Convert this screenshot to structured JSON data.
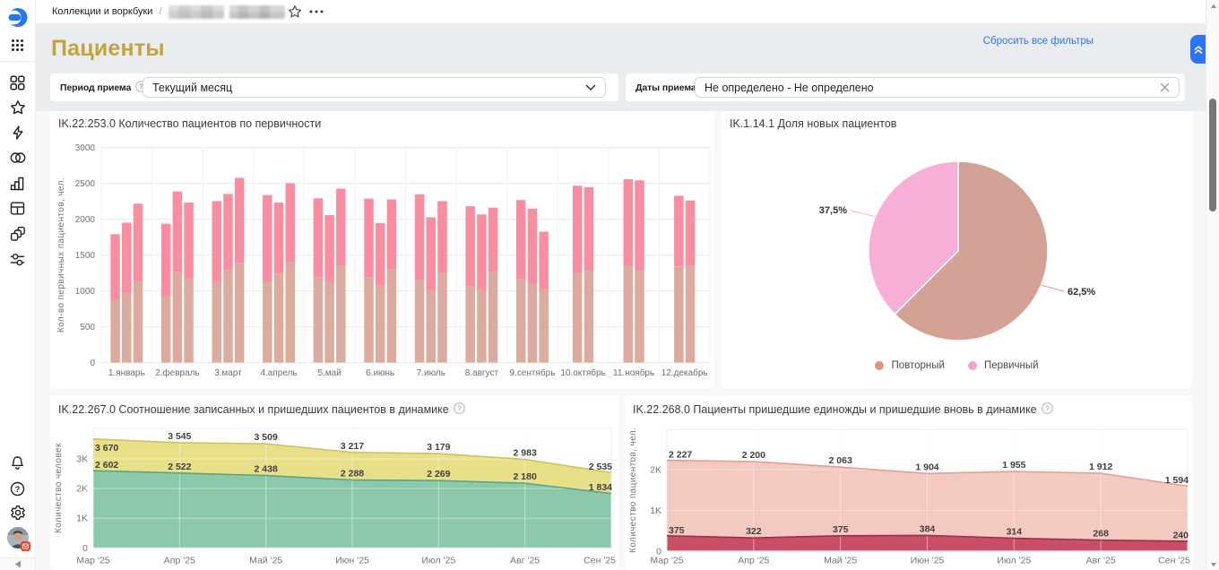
{
  "topbar": {
    "breadcrumb": {
      "root": "Коллекции и воркбуки",
      "separator": "/",
      "masked_segment_count": 2
    },
    "icons": [
      "star-icon",
      "ellipsis-icon"
    ]
  },
  "sidebar": {
    "logo_icon": "datalens-logo",
    "apps_icon": "apps-grid-icon",
    "nav_icons": [
      "collections-icon",
      "favorites-star-icon",
      "quick-actions-lightning-icon",
      "connections-icon",
      "charts-icon",
      "dashboards-table-icon",
      "datasets-icon",
      "services-sliders-icon"
    ],
    "bottom_icons": [
      "bell-icon",
      "help-question-icon",
      "settings-gear-icon",
      "user-avatar"
    ],
    "collapse_icon": "collapse-arrow-icon"
  },
  "header": {
    "title": "Пациенты",
    "reset_filters_label": "Сбросить все фильтры"
  },
  "filters": {
    "period": {
      "label": "Период приема",
      "has_help": true,
      "control": "select",
      "value": "Текущий месяц"
    },
    "dates": {
      "label": "Даты приема",
      "control": "input",
      "value": "Не определено - Не определено",
      "clearable": true
    }
  },
  "colors": {
    "accent_blue": "#2e74fb",
    "link_blue": "#3072f7",
    "title_gold": "#c4a33e",
    "band_gray": "#e9edf0",
    "bar_bottom_tan": "#dcab9e",
    "bar_top_pink": "#fb8da1",
    "pie_repeat_tan": "#d4a295",
    "pie_new_pink": "#f8aed7",
    "area_yellow": "#e7e089",
    "area_green": "#8cc8ab",
    "area_salmon": "#f3c9c0",
    "area_crimson": "#c84f66"
  },
  "chart_data": [
    {
      "id": "bars",
      "type": "bar",
      "stacked": true,
      "title": "IK.22.253.0 Количество пациентов по первичности",
      "ylabel": "Кол-во первичных пациентов, чел.",
      "ylim": [
        0,
        3000
      ],
      "yticks": [
        0,
        500,
        1000,
        1500,
        2000,
        2500,
        3000
      ],
      "grid": true,
      "categories": [
        "1.январь",
        "2.февраль",
        "3.март",
        "4.апрель",
        "5.май",
        "6.июнь",
        "7.июль",
        "8.август",
        "9.сентябрь",
        "10.октябрь",
        "11.ноябрь",
        "12.декабрь"
      ],
      "segment_colors": [
        "#dcab9e",
        "#fb8da1"
      ],
      "groups": [
        {
          "category": "1.январь",
          "bars": [
            {
              "bottom": 870,
              "total": 1790
            },
            {
              "bottom": 970,
              "total": 1950
            },
            {
              "bottom": 1130,
              "total": 2215
            }
          ]
        },
        {
          "category": "2.февраль",
          "bars": [
            {
              "bottom": 920,
              "total": 1935
            },
            {
              "bottom": 1260,
              "total": 2385
            },
            {
              "bottom": 1170,
              "total": 2230
            }
          ]
        },
        {
          "category": "3.март",
          "bars": [
            {
              "bottom": 1120,
              "total": 2250
            },
            {
              "bottom": 1290,
              "total": 2350
            },
            {
              "bottom": 1385,
              "total": 2575
            }
          ]
        },
        {
          "category": "4.апрель",
          "bars": [
            {
              "bottom": 1125,
              "total": 2335
            },
            {
              "bottom": 1240,
              "total": 2230
            },
            {
              "bottom": 1405,
              "total": 2500
            }
          ]
        },
        {
          "category": "5.май",
          "bars": [
            {
              "bottom": 1190,
              "total": 2290
            },
            {
              "bottom": 1125,
              "total": 2055
            },
            {
              "bottom": 1355,
              "total": 2425
            }
          ]
        },
        {
          "category": "6.июнь",
          "bars": [
            {
              "bottom": 1185,
              "total": 2285
            },
            {
              "bottom": 1075,
              "total": 1945
            },
            {
              "bottom": 1305,
              "total": 2275
            }
          ]
        },
        {
          "category": "7.июль",
          "bars": [
            {
              "bottom": 1155,
              "total": 2345
            },
            {
              "bottom": 1005,
              "total": 2025
            },
            {
              "bottom": 1245,
              "total": 2250
            }
          ]
        },
        {
          "category": "8.август",
          "bars": [
            {
              "bottom": 1065,
              "total": 2180
            },
            {
              "bottom": 1025,
              "total": 2065
            },
            {
              "bottom": 1265,
              "total": 2160
            }
          ]
        },
        {
          "category": "9.сентябрь",
          "bars": [
            {
              "bottom": 1165,
              "total": 2265
            },
            {
              "bottom": 1095,
              "total": 2145
            },
            {
              "bottom": 1020,
              "total": 1825
            }
          ]
        },
        {
          "category": "10.октябрь",
          "bars": [
            {
              "bottom": 1250,
              "total": 2465
            },
            {
              "bottom": 1280,
              "total": 2445
            }
          ]
        },
        {
          "category": "11.ноябрь",
          "bars": [
            {
              "bottom": 1350,
              "total": 2555
            },
            {
              "bottom": 1280,
              "total": 2540
            }
          ]
        },
        {
          "category": "12.декабрь",
          "bars": [
            {
              "bottom": 1340,
              "total": 2325
            },
            {
              "bottom": 1345,
              "total": 2260
            }
          ]
        }
      ]
    },
    {
      "id": "pie",
      "type": "pie",
      "title": "IK.1.14.1 Доля новых пациентов",
      "slices": [
        {
          "label": "Повторный",
          "value": 62.5,
          "display": "62,5%",
          "color": "#d4a295"
        },
        {
          "label": "Первичный",
          "value": 37.5,
          "display": "37,5%",
          "color": "#f8aed7"
        }
      ],
      "legend": [
        {
          "label": "Повторный",
          "color": "#dd9482"
        },
        {
          "label": "Первичный",
          "color": "#f8a3cf"
        }
      ],
      "legend_position": "bottom"
    },
    {
      "id": "area1",
      "type": "area",
      "title": "IK.22.267.0 Соотношение записанных и пришедших пациентов в динамике",
      "has_help": true,
      "ylabel": "Количество человек",
      "x": [
        "Мар '25",
        "Апр '25",
        "Май '25",
        "Июн '25",
        "Июл '25",
        "Авг '25",
        "Сен '25"
      ],
      "yticks": [
        {
          "v": 0,
          "label": "0"
        },
        {
          "v": 1000,
          "label": "1K"
        },
        {
          "v": 2000,
          "label": "2K"
        },
        {
          "v": 3000,
          "label": "3K"
        }
      ],
      "grid": true,
      "series": [
        {
          "fill": "#e7e089",
          "line": "#cfc35e",
          "values": [
            3670,
            3545,
            3509,
            3217,
            3179,
            2983,
            2535
          ],
          "labels": [
            "3 670",
            "3 545",
            "3 509",
            "3 217",
            "3 179",
            "2 983",
            "2 535"
          ]
        },
        {
          "fill": "#8cc8ab",
          "line": "#5aa584",
          "values": [
            2602,
            2522,
            2438,
            2288,
            2269,
            2180,
            1834
          ],
          "labels": [
            "2 602",
            "2 522",
            "2 438",
            "2 288",
            "2 269",
            "2 180",
            "1 834"
          ]
        }
      ]
    },
    {
      "id": "area2",
      "type": "area",
      "title": "IK.22.268.0 Пациенты пришедшие единожды и пришедшие вновь в динамике",
      "has_help": true,
      "ylabel": "Количество пациентов, чел.",
      "x": [
        "Мар '25",
        "Апр '25",
        "Май '25",
        "Июн '25",
        "Июл '25",
        "Авг '25",
        "Сен '25"
      ],
      "yticks": [
        {
          "v": 0,
          "label": "0"
        },
        {
          "v": 1000,
          "label": "1K"
        },
        {
          "v": 2000,
          "label": "2K"
        }
      ],
      "grid": true,
      "series": [
        {
          "fill": "#f3c9c0",
          "line": "#e2a194",
          "values": [
            2227,
            2200,
            2063,
            1904,
            1955,
            1912,
            1594
          ],
          "labels": [
            "2 227",
            "2 200",
            "2 063",
            "1 904",
            "1 955",
            "1 912",
            "1 594"
          ]
        },
        {
          "fill": "#c84f66",
          "line": "#9e2f47",
          "values": [
            375,
            322,
            375,
            384,
            314,
            268,
            240
          ],
          "labels": [
            "375",
            "322",
            "375",
            "384",
            "314",
            "268",
            "240"
          ]
        }
      ]
    }
  ]
}
